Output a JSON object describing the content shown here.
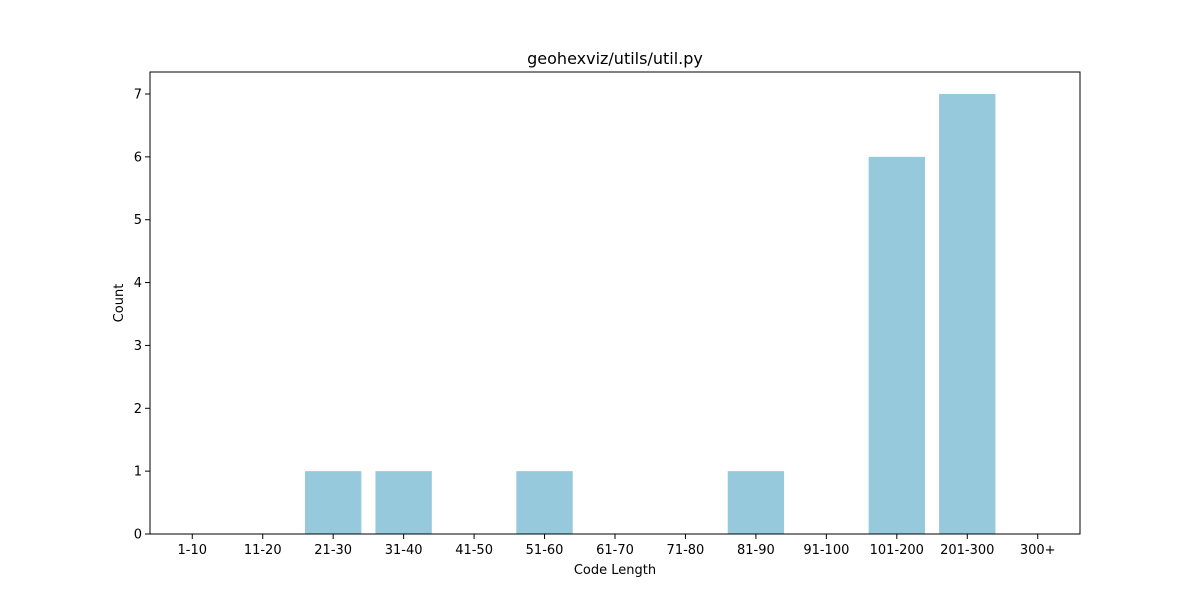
{
  "chart_data": {
    "type": "bar",
    "title": "geohexviz/utils/util.py",
    "xlabel": "Code Length",
    "ylabel": "Count",
    "categories": [
      "1-10",
      "11-20",
      "21-30",
      "31-40",
      "41-50",
      "51-60",
      "61-70",
      "71-80",
      "81-90",
      "91-100",
      "101-200",
      "201-300",
      "300+"
    ],
    "values": [
      0,
      0,
      1,
      1,
      0,
      1,
      0,
      0,
      1,
      0,
      6,
      7,
      0
    ],
    "ylim": [
      0,
      7.35
    ],
    "yticks": [
      "0",
      "1",
      "2",
      "3",
      "4",
      "5",
      "6",
      "7"
    ],
    "bar_color": "#96c9dc",
    "grid": false,
    "legend": "none"
  }
}
